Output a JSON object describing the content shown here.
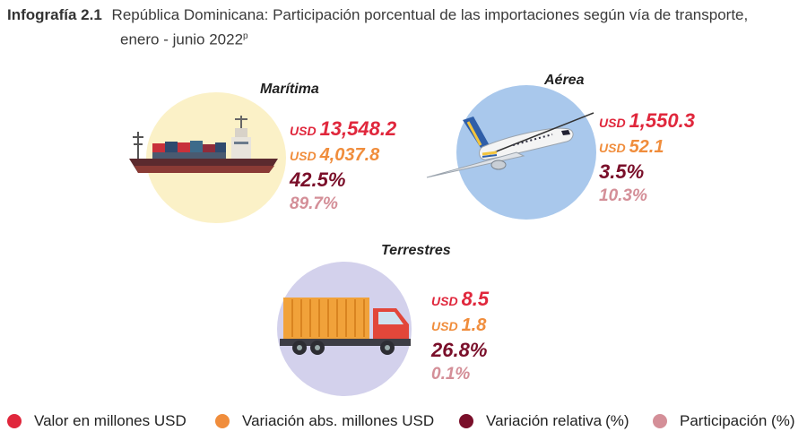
{
  "header": {
    "label": "Infografía 2.1",
    "title_line1": "República Dominicana: Participación porcentual de las importaciones según vía de transporte,",
    "title_line2": "enero - junio  2022",
    "title_sup": "p"
  },
  "colors": {
    "valor": "#e0273c",
    "variacion_abs": "#f08d3c",
    "variacion_rel": "#7a0f2a",
    "participacion": "#d48f98",
    "maritima_circle": "#fbf1c7",
    "aerea_circle": "#a9c8ec",
    "terrestres_circle": "#d3d1ec"
  },
  "modes": {
    "maritima": {
      "title": "Marítima",
      "icon": "cargo-ship-icon",
      "valor_usd": "USD",
      "valor": "13,548.2",
      "variacion_abs_usd": "USD",
      "variacion_abs": "4,037.8",
      "variacion_rel": "42.5%",
      "participacion": "89.7%"
    },
    "aerea": {
      "title": "Aérea",
      "icon": "airplane-icon",
      "valor_usd": "USD",
      "valor": "1,550.3",
      "variacion_abs_usd": "USD",
      "variacion_abs": "52.1",
      "variacion_rel": "3.5%",
      "participacion": "10.3%"
    },
    "terrestres": {
      "title": "Terrestres",
      "icon": "cargo-truck-icon",
      "valor_usd": "USD",
      "valor": "8.5",
      "variacion_abs_usd": "USD",
      "variacion_abs": "1.8",
      "variacion_rel": "26.8%",
      "participacion": "0.1%"
    }
  },
  "legend": {
    "valor": "Valor en millones USD",
    "variacion_abs": "Variación abs. millones USD",
    "variacion_rel": "Variación relativa",
    "variacion_rel_unit": "(%)",
    "participacion": "Participación (%)"
  }
}
